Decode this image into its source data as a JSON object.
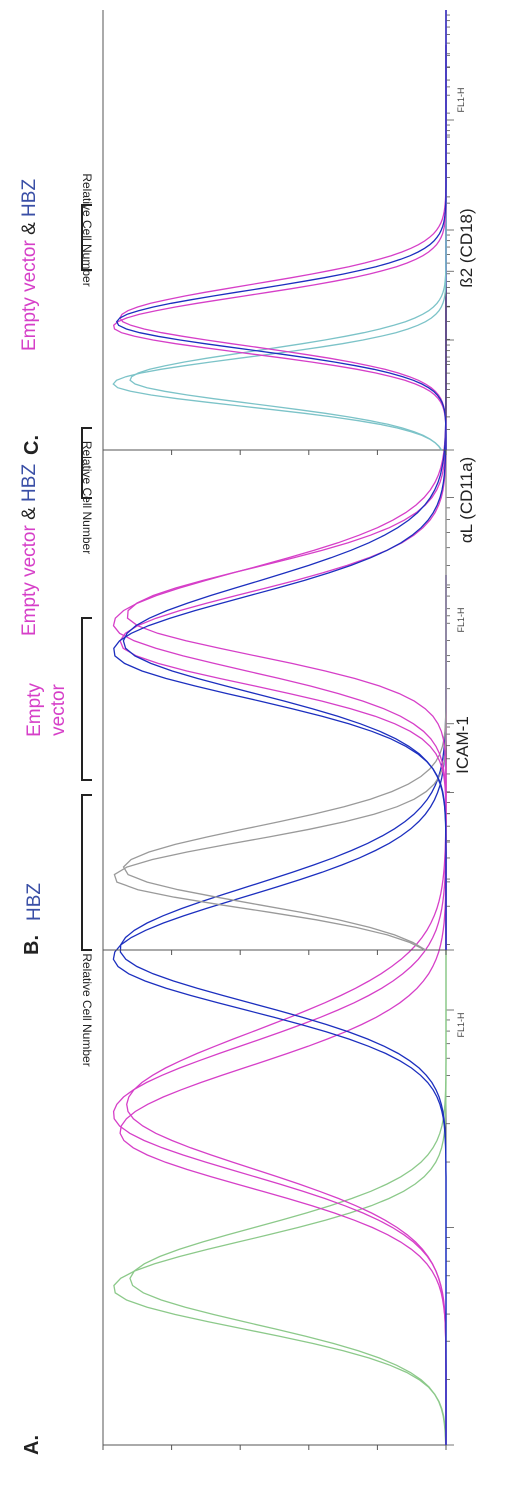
{
  "figure": {
    "panels": [
      {
        "letter": "A.",
        "title_lines": [
          [
            {
              "text": "Empty",
              "color": "#d63fc8"
            }
          ],
          [
            {
              "text": "vector",
              "color": "#d63fc8"
            }
          ],
          [
            {
              "text": "HBZ",
              "color": "#3a4fa6"
            }
          ]
        ],
        "ylabel": "Relative Cell Number",
        "xlabel": "ICAM-1",
        "channel": "FL1-H"
      },
      {
        "letter": "B.",
        "title_lines": [
          [
            {
              "text": "Empty vector",
              "color": "#d63fc8"
            },
            {
              "text": " & ",
              "color": "#222222"
            },
            {
              "text": "HBZ",
              "color": "#3a4fa6"
            }
          ]
        ],
        "ylabel": "Relative Cell Number",
        "xlabel": "αL (CD11a)",
        "channel": "FL1-H"
      },
      {
        "letter": "C.",
        "title_lines": [
          [
            {
              "text": "Empty vector",
              "color": "#d63fc8"
            },
            {
              "text": " & ",
              "color": "#222222"
            },
            {
              "text": "HBZ",
              "color": "#3a4fa6"
            }
          ]
        ],
        "ylabel": "Relative Cell Number",
        "xlabel": "ß2 (CD18)",
        "channel": "FL1-H"
      }
    ]
  },
  "chart_data": [
    {
      "type": "line",
      "title": "",
      "xlabel": "ICAM-1",
      "ylabel": "Relative Cell Number",
      "xlim": [
        0,
        1
      ],
      "ylim": [
        0,
        1
      ],
      "x_scale": "log",
      "series": [
        {
          "color": "#8cc98a",
          "values": [
            [
              0.18,
              1.0,
              0.055
            ],
            [
              0.19,
              0.95,
              0.06
            ]
          ]
        },
        {
          "color": "#d63fc8",
          "values": [
            [
              0.36,
              0.98,
              0.075
            ],
            [
              0.38,
              1.0,
              0.08
            ],
            [
              0.39,
              0.96,
              0.085
            ]
          ]
        },
        {
          "color": "#1c2fbf",
          "values": [
            [
              0.56,
              1.0,
              0.07
            ],
            [
              0.57,
              0.98,
              0.072
            ]
          ]
        }
      ]
    },
    {
      "type": "line",
      "title": "",
      "xlabel": "αL (CD11a)",
      "ylabel": "Relative Cell Number",
      "xlim": [
        0,
        1
      ],
      "ylim": [
        0,
        1
      ],
      "x_scale": "log",
      "series": [
        {
          "color": "#9a9a9a",
          "values": [
            [
              0.08,
              1.0,
              0.04
            ],
            [
              0.09,
              0.97,
              0.045
            ]
          ]
        },
        {
          "color": "#d63fc8",
          "values": [
            [
              0.34,
              0.98,
              0.055
            ],
            [
              0.36,
              1.0,
              0.06
            ],
            [
              0.37,
              0.96,
              0.052
            ]
          ]
        },
        {
          "color": "#1c2fbf",
          "values": [
            [
              0.33,
              1.0,
              0.06
            ],
            [
              0.34,
              0.97,
              0.065
            ]
          ]
        }
      ]
    },
    {
      "type": "line",
      "title": "",
      "xlabel": "ß2 (CD18)",
      "ylabel": "Relative Cell Number",
      "xlim": [
        0,
        1
      ],
      "ylim": [
        0,
        1
      ],
      "x_scale": "log",
      "series": [
        {
          "color": "#7cc3c8",
          "values": [
            [
              0.15,
              1.0,
              0.06
            ],
            [
              0.16,
              0.95,
              0.065
            ]
          ]
        },
        {
          "color": "#d63fc8",
          "values": [
            [
              0.28,
              1.0,
              0.07
            ],
            [
              0.3,
              0.98,
              0.075
            ]
          ]
        },
        {
          "color": "#1c2fbf",
          "values": [
            [
              0.29,
              0.99,
              0.072
            ]
          ]
        }
      ]
    }
  ]
}
